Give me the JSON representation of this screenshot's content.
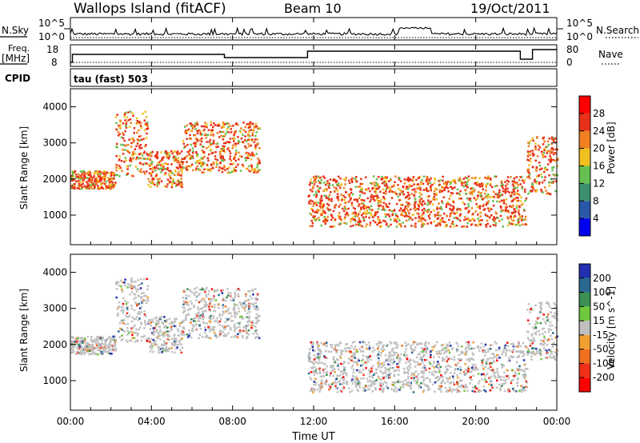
{
  "header": {
    "station": "Wallops Island (fitACF)",
    "beam": "Beam 10",
    "date": "19/Oct/2011"
  },
  "noise_panel": {
    "left_label": "N.Sky",
    "right_label": "N.Search",
    "left_ticks": [
      "10^5",
      "10^0"
    ],
    "right_ticks": [
      "10^5",
      "10^0"
    ]
  },
  "freq_panel": {
    "left_label_line1": "Freq.",
    "left_label_line2": "[MHz]",
    "right_label": "Nave",
    "left_ticks": [
      "18",
      "8"
    ],
    "right_ticks": [
      "80",
      "0"
    ]
  },
  "cpid": {
    "label": "CPID",
    "mode": "tau (fast) 503"
  },
  "xaxis": {
    "title": "Time UT",
    "ticks": [
      "00:00",
      "04:00",
      "08:00",
      "12:00",
      "16:00",
      "20:00",
      "00:00"
    ]
  },
  "chart_data": [
    {
      "type": "heatmap",
      "parameter": "Power",
      "ylabel": "Slant Range [km]",
      "xlabel": "Time UT",
      "xlim": [
        0,
        24
      ],
      "ylim": [
        180,
        4500
      ],
      "yticks": [
        "1000",
        "2000",
        "3000",
        "4000"
      ],
      "colorbar": {
        "label": "Power [dB]",
        "ticks": [
          "4",
          "8",
          "12",
          "16",
          "20",
          "24",
          "28"
        ],
        "colors": [
          "#0000ee",
          "#2a58a8",
          "#3c9070",
          "#66c050",
          "#f0c020",
          "#f08020",
          "#e83018",
          "#ff0000"
        ]
      },
      "echo_regions": [
        {
          "t_start": 0.0,
          "t_end": 2.2,
          "range_center": 2000,
          "range_width": 250
        },
        {
          "t_start": 2.2,
          "t_end": 3.8,
          "range_center": 3000,
          "range_width": 900
        },
        {
          "t_start": 3.8,
          "t_end": 5.5,
          "range_center": 2300,
          "range_width": 500
        },
        {
          "t_start": 5.5,
          "t_end": 9.3,
          "range_center": 2900,
          "range_width": 700
        },
        {
          "t_start": 11.7,
          "t_end": 22.5,
          "range_center": 1400,
          "range_width": 700
        },
        {
          "t_start": 22.5,
          "t_end": 24.0,
          "range_center": 2400,
          "range_width": 800
        }
      ]
    },
    {
      "type": "heatmap",
      "parameter": "Velocity",
      "ylabel": "Slant Range [km]",
      "xlabel": "Time UT",
      "xlim": [
        0,
        24
      ],
      "ylim": [
        180,
        4500
      ],
      "yticks": [
        "1000",
        "2000",
        "3000",
        "4000"
      ],
      "colorbar": {
        "label": "Velocity [m s^-1]",
        "ticks": [
          "200",
          "100",
          "50",
          "15",
          "-15",
          "-50",
          "-100",
          "-200"
        ],
        "colors": [
          "#2030b0",
          "#2a6890",
          "#3a9050",
          "#70c840",
          "#c0c0c0",
          "#f0a030",
          "#f07020",
          "#f03018",
          "#ff0000"
        ]
      },
      "echo_regions": [
        {
          "t_start": 0.0,
          "t_end": 2.2,
          "range_center": 2000,
          "range_width": 250
        },
        {
          "t_start": 2.2,
          "t_end": 3.8,
          "range_center": 3000,
          "range_width": 900
        },
        {
          "t_start": 3.8,
          "t_end": 5.5,
          "range_center": 2300,
          "range_width": 500
        },
        {
          "t_start": 5.5,
          "t_end": 9.3,
          "range_center": 2900,
          "range_width": 700
        },
        {
          "t_start": 11.7,
          "t_end": 22.5,
          "range_center": 1400,
          "range_width": 700
        },
        {
          "t_start": 22.5,
          "t_end": 24.0,
          "range_center": 2400,
          "range_width": 800
        }
      ]
    }
  ]
}
